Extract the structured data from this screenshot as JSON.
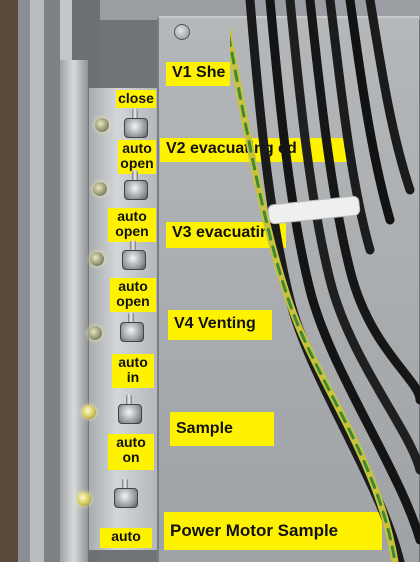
{
  "panel_labels": [
    {
      "text": "V1 She"
    },
    {
      "text": "V2 evacuating ed"
    },
    {
      "text": "V3 evacuating"
    },
    {
      "text": "V4 Venting"
    },
    {
      "text": "Sample"
    },
    {
      "text": "Power Motor Sample"
    }
  ],
  "switch_labels": [
    {
      "text": "close"
    },
    {
      "text": "auto open"
    },
    {
      "text": "auto open"
    },
    {
      "text": "auto open"
    },
    {
      "text": "auto in"
    },
    {
      "text": "auto on"
    },
    {
      "text": "auto"
    }
  ],
  "colors": {
    "label_yellow": "#fff200",
    "panel_grey": "#a7abae",
    "cable_black": "#1a1a1a",
    "ground_wire": "#c9c23a"
  }
}
